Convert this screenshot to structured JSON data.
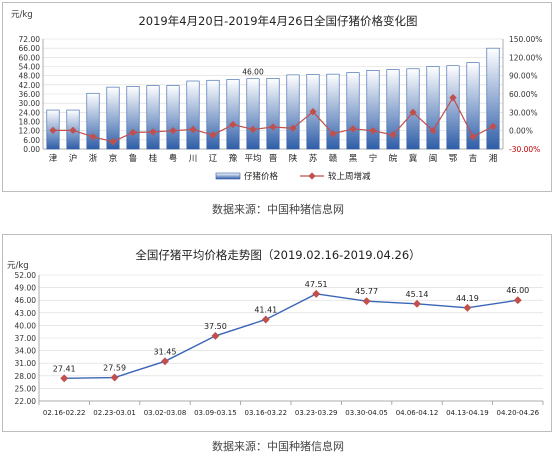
{
  "chart_data": [
    {
      "type": "bar",
      "title": "2019年4月20日-2019年4月26日全国仔猪价格变化图",
      "ylabel": "元/kg",
      "ylim": [
        0,
        72
      ],
      "yticks": [
        "0.00",
        "6.00",
        "12.00",
        "18.00",
        "24.00",
        "30.00",
        "36.00",
        "42.00",
        "48.00",
        "54.00",
        "60.00",
        "66.00",
        "72.00"
      ],
      "y2lim": [
        -30,
        150
      ],
      "y2ticks": [
        "-30.00%",
        "0.00%",
        "30.00%",
        "60.00%",
        "90.00%",
        "120.00%",
        "150.00%"
      ],
      "categories": [
        "津",
        "沪",
        "浙",
        "京",
        "鲁",
        "桂",
        "粤",
        "川",
        "辽",
        "豫",
        "平均",
        "晋",
        "陕",
        "苏",
        "赣",
        "黑",
        "宁",
        "皖",
        "冀",
        "闽",
        "鄂",
        "吉",
        "湘"
      ],
      "series": [
        {
          "name": "仔猪价格",
          "type": "bar",
          "values": [
            25.5,
            25.5,
            36.5,
            40.5,
            41.0,
            41.5,
            41.5,
            44.5,
            45.0,
            45.5,
            46.0,
            46.2,
            48.5,
            48.8,
            49.0,
            50.0,
            51.5,
            52.0,
            52.5,
            54.0,
            54.5,
            56.5,
            66.0
          ]
        },
        {
          "name": "较上周增减",
          "type": "line",
          "axis": "right",
          "values": [
            0.5,
            0.5,
            -10,
            -18,
            -3,
            -2,
            0,
            2,
            -7,
            10,
            2,
            6,
            4,
            31,
            -5,
            3,
            0,
            -7,
            30,
            0,
            54,
            -10,
            7
          ]
        }
      ],
      "data_labels": [
        {
          "category": "平均",
          "text": "46.00"
        }
      ],
      "grid": true,
      "legend": "bottom"
    },
    {
      "type": "line",
      "title": "全国仔猪平均价格走势图（2019.02.16-2019.04.26）",
      "ylabel": "元/kg",
      "ylim": [
        22,
        52
      ],
      "yticks": [
        "22.00",
        "25.00",
        "28.00",
        "31.00",
        "34.00",
        "37.00",
        "40.00",
        "43.00",
        "46.00",
        "49.00",
        "52.00"
      ],
      "categories": [
        "02.16-02.22",
        "02.23-03.01",
        "03.02-03.08",
        "03.09-03.15",
        "03.16-03.22",
        "03.23-03.29",
        "03.30-04.05",
        "04.06-04.12",
        "04.13-04.19",
        "04.20-04.26"
      ],
      "values": [
        27.41,
        27.59,
        31.45,
        37.5,
        41.41,
        47.51,
        45.77,
        45.14,
        44.19,
        46.0
      ],
      "value_labels": [
        "27.41",
        "27.59",
        "31.45",
        "37.50",
        "41.41",
        "47.51",
        "45.77",
        "45.14",
        "44.19",
        "46.00"
      ],
      "grid": true
    }
  ],
  "captions": [
    "数据来源：中国种猪信息网",
    "数据来源：中国种猪信息网"
  ],
  "colors": {
    "bar_top": "#ffffff",
    "bar_bottom": "#2f5ea8",
    "bar_border": "#2f5ea8",
    "line": "#c0504d",
    "point": "#c0504d",
    "trend_line": "#3a66b8",
    "trend_point": "#c0504d",
    "right_axis": "#c00000",
    "grid": "#d9d9d9"
  }
}
